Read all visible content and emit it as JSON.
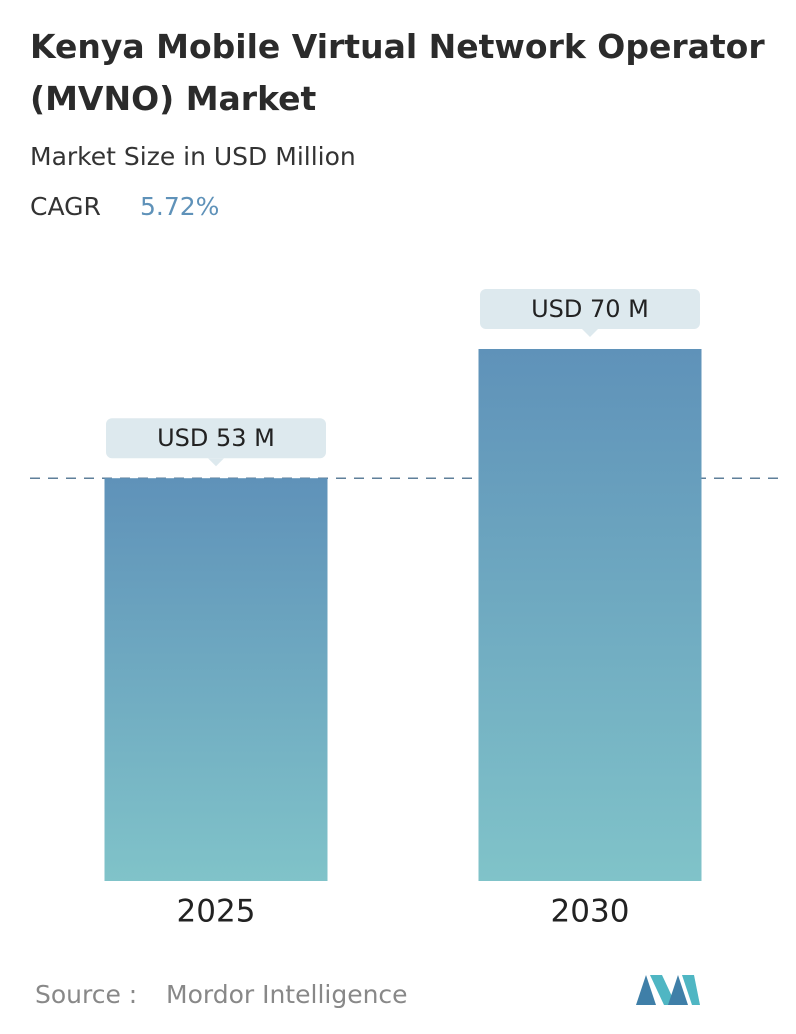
{
  "chart_data": {
    "type": "bar",
    "title": "Kenya Mobile Virtual Network Operator (MVNO) Market",
    "subtitle": "Market Size in USD Million",
    "cagr_label": "CAGR",
    "cagr": "5.72%",
    "categories": [
      "2025",
      "2030"
    ],
    "values": [
      53,
      70
    ],
    "value_labels": [
      "USD 53 M",
      "USD 70 M"
    ],
    "color": "#5f92b9",
    "source_label": "Source :",
    "source": "Mordor Intelligence"
  }
}
